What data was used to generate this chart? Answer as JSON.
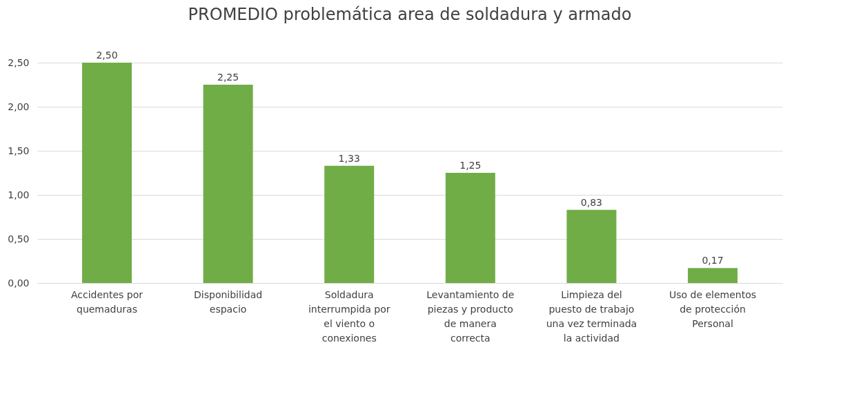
{
  "chart_data": {
    "type": "bar",
    "title": "PROMEDIO problemática area de soldadura y armado",
    "categories": [
      "Accidentes por quemaduras",
      "Disponibilidad espacio",
      "Soldadura interrumpida por el viento o conexiones",
      "Levantamiento de piezas y producto de manera correcta",
      "Limpieza del puesto de trabajo una vez terminada la actividad",
      "Uso de elementos de protección Personal"
    ],
    "values": [
      2.5,
      2.25,
      1.33,
      1.25,
      0.83,
      0.17
    ],
    "value_labels": [
      "2,50",
      "2,25",
      "1,33",
      "1,25",
      "0,83",
      "0,17"
    ],
    "color": "#70ad47",
    "ylim": [
      0,
      2.5
    ],
    "yticks": [
      {
        "value": 0,
        "label": "0,00"
      },
      {
        "value": 0.5,
        "label": "0,50"
      },
      {
        "value": 1,
        "label": "1,00"
      },
      {
        "value": 1.5,
        "label": "1,50"
      },
      {
        "value": 2,
        "label": "2,00"
      },
      {
        "value": 2.5,
        "label": "2,50"
      }
    ],
    "grid": "y"
  }
}
